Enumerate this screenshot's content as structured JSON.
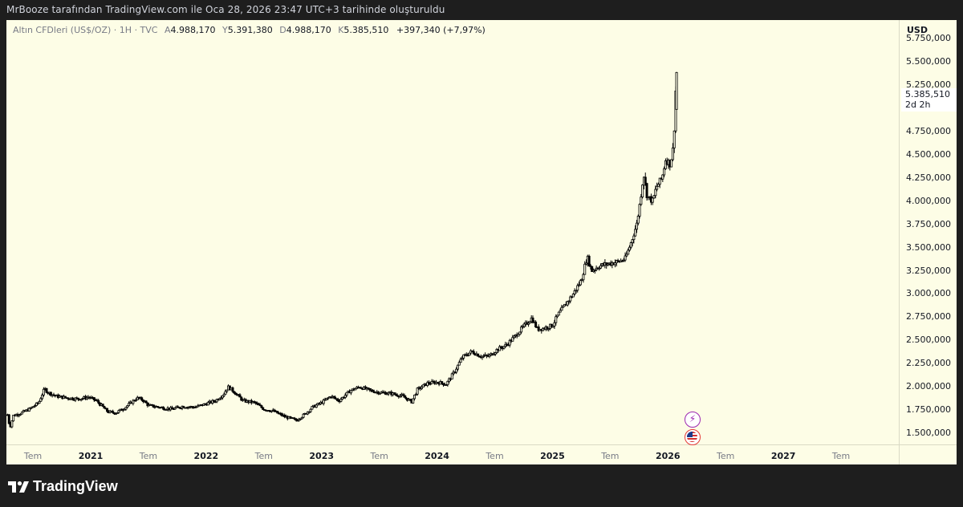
{
  "header": {
    "text": "MrBooze tarafından TradingView.com ile Oca 28, 2026 23:47 UTC+3 tarihinde oluşturuldu"
  },
  "legend": {
    "symbol": "Altın CFDleri (US$/OZ) · 1H · TVC",
    "open_key": "A",
    "open": "4.988,170",
    "high_key": "Y",
    "high": "5.391,380",
    "low_key": "D",
    "low": "4.988,170",
    "close_key": "K",
    "close": "5.385,510",
    "change": "+397,340 (+7,97%)"
  },
  "price_axis": {
    "currency": "USD",
    "last_price": "5.385,510",
    "countdown": "2d 2h"
  },
  "brand": {
    "name": "TradingView"
  },
  "icons": {
    "event_1": "lightning-icon",
    "event_2": "us-flag-icon"
  },
  "chart_data": {
    "type": "candlestick",
    "title": "",
    "ylabel": "USD",
    "ylim": [
      1380,
      5950
    ],
    "y_ticks": [
      {
        "value": 1500,
        "label": "1.500,000"
      },
      {
        "value": 1750,
        "label": "1.750,000"
      },
      {
        "value": 2000,
        "label": "2.000,000"
      },
      {
        "value": 2250,
        "label": "2.250,000"
      },
      {
        "value": 2500,
        "label": "2.500,000"
      },
      {
        "value": 2750,
        "label": "2.750,000"
      },
      {
        "value": 3000,
        "label": "3.000,000"
      },
      {
        "value": 3250,
        "label": "3.250,000"
      },
      {
        "value": 3500,
        "label": "3.500,000"
      },
      {
        "value": 3750,
        "label": "3.750,000"
      },
      {
        "value": 4000,
        "label": "4.000,000"
      },
      {
        "value": 4250,
        "label": "4.250,000"
      },
      {
        "value": 4500,
        "label": "4.500,000"
      },
      {
        "value": 4750,
        "label": "4.750,000"
      },
      {
        "value": 5000,
        "label": "5.000,000"
      },
      {
        "value": 5250,
        "label": "5.250,000"
      },
      {
        "value": 5500,
        "label": "5.500,000"
      },
      {
        "value": 5750,
        "label": "5.750,000"
      }
    ],
    "x_ticks": [
      {
        "value": 2020.5,
        "label": "Tem",
        "year": false
      },
      {
        "value": 2021.0,
        "label": "2021",
        "year": true
      },
      {
        "value": 2021.5,
        "label": "Tem",
        "year": false
      },
      {
        "value": 2022.0,
        "label": "2022",
        "year": true
      },
      {
        "value": 2022.5,
        "label": "Tem",
        "year": false
      },
      {
        "value": 2023.0,
        "label": "2023",
        "year": true
      },
      {
        "value": 2023.5,
        "label": "Tem",
        "year": false
      },
      {
        "value": 2024.0,
        "label": "2024",
        "year": true
      },
      {
        "value": 2024.5,
        "label": "Tem",
        "year": false
      },
      {
        "value": 2025.0,
        "label": "2025",
        "year": true
      },
      {
        "value": 2025.5,
        "label": "Tem",
        "year": false
      },
      {
        "value": 2026.0,
        "label": "2026",
        "year": true
      },
      {
        "value": 2026.5,
        "label": "Tem",
        "year": false
      },
      {
        "value": 2027.0,
        "label": "2027",
        "year": true
      },
      {
        "value": 2027.5,
        "label": "Tem",
        "year": false
      }
    ],
    "xlim": [
      2020.27,
      2028.0
    ],
    "grid": false,
    "close_path": [
      {
        "t": 2020.28,
        "v": 1700
      },
      {
        "t": 2020.3,
        "v": 1560
      },
      {
        "t": 2020.33,
        "v": 1690
      },
      {
        "t": 2020.4,
        "v": 1720
      },
      {
        "t": 2020.47,
        "v": 1760
      },
      {
        "t": 2020.55,
        "v": 1830
      },
      {
        "t": 2020.6,
        "v": 1980
      },
      {
        "t": 2020.63,
        "v": 1940
      },
      {
        "t": 2020.7,
        "v": 1900
      },
      {
        "t": 2020.8,
        "v": 1880
      },
      {
        "t": 2020.9,
        "v": 1870
      },
      {
        "t": 2020.98,
        "v": 1890
      },
      {
        "t": 2021.05,
        "v": 1850
      },
      {
        "t": 2021.15,
        "v": 1730
      },
      {
        "t": 2021.22,
        "v": 1720
      },
      {
        "t": 2021.3,
        "v": 1780
      },
      {
        "t": 2021.4,
        "v": 1880
      },
      {
        "t": 2021.45,
        "v": 1860
      },
      {
        "t": 2021.5,
        "v": 1800
      },
      {
        "t": 2021.6,
        "v": 1780
      },
      {
        "t": 2021.7,
        "v": 1760
      },
      {
        "t": 2021.8,
        "v": 1790
      },
      {
        "t": 2021.9,
        "v": 1780
      },
      {
        "t": 2021.98,
        "v": 1810
      },
      {
        "t": 2022.08,
        "v": 1850
      },
      {
        "t": 2022.15,
        "v": 1920
      },
      {
        "t": 2022.19,
        "v": 2000
      },
      {
        "t": 2022.24,
        "v": 1950
      },
      {
        "t": 2022.32,
        "v": 1850
      },
      {
        "t": 2022.42,
        "v": 1830
      },
      {
        "t": 2022.5,
        "v": 1760
      },
      {
        "t": 2022.58,
        "v": 1740
      },
      {
        "t": 2022.68,
        "v": 1680
      },
      {
        "t": 2022.78,
        "v": 1640
      },
      {
        "t": 2022.85,
        "v": 1700
      },
      {
        "t": 2022.92,
        "v": 1780
      },
      {
        "t": 2023.0,
        "v": 1830
      },
      {
        "t": 2023.08,
        "v": 1900
      },
      {
        "t": 2023.15,
        "v": 1850
      },
      {
        "t": 2023.25,
        "v": 1960
      },
      {
        "t": 2023.33,
        "v": 2000
      },
      {
        "t": 2023.42,
        "v": 1960
      },
      {
        "t": 2023.5,
        "v": 1940
      },
      {
        "t": 2023.6,
        "v": 1930
      },
      {
        "t": 2023.7,
        "v": 1900
      },
      {
        "t": 2023.78,
        "v": 1840
      },
      {
        "t": 2023.83,
        "v": 1970
      },
      {
        "t": 2023.92,
        "v": 2040
      },
      {
        "t": 2024.0,
        "v": 2050
      },
      {
        "t": 2024.08,
        "v": 2030
      },
      {
        "t": 2024.15,
        "v": 2160
      },
      {
        "t": 2024.22,
        "v": 2320
      },
      {
        "t": 2024.3,
        "v": 2380
      },
      {
        "t": 2024.38,
        "v": 2330
      },
      {
        "t": 2024.45,
        "v": 2330
      },
      {
        "t": 2024.52,
        "v": 2400
      },
      {
        "t": 2024.6,
        "v": 2450
      },
      {
        "t": 2024.68,
        "v": 2550
      },
      {
        "t": 2024.75,
        "v": 2650
      },
      {
        "t": 2024.82,
        "v": 2740
      },
      {
        "t": 2024.87,
        "v": 2620
      },
      {
        "t": 2024.92,
        "v": 2630
      },
      {
        "t": 2025.0,
        "v": 2660
      },
      {
        "t": 2025.05,
        "v": 2780
      },
      {
        "t": 2025.12,
        "v": 2900
      },
      {
        "t": 2025.18,
        "v": 3000
      },
      {
        "t": 2025.25,
        "v": 3150
      },
      {
        "t": 2025.3,
        "v": 3400
      },
      {
        "t": 2025.34,
        "v": 3250
      },
      {
        "t": 2025.4,
        "v": 3300
      },
      {
        "t": 2025.5,
        "v": 3330
      },
      {
        "t": 2025.58,
        "v": 3350
      },
      {
        "t": 2025.63,
        "v": 3380
      },
      {
        "t": 2025.68,
        "v": 3550
      },
      {
        "t": 2025.73,
        "v": 3750
      },
      {
        "t": 2025.76,
        "v": 4000
      },
      {
        "t": 2025.79,
        "v": 4300
      },
      {
        "t": 2025.82,
        "v": 4050
      },
      {
        "t": 2025.87,
        "v": 4000
      },
      {
        "t": 2025.9,
        "v": 4150
      },
      {
        "t": 2025.95,
        "v": 4250
      },
      {
        "t": 2025.98,
        "v": 4450
      },
      {
        "t": 2026.02,
        "v": 4400
      },
      {
        "t": 2026.05,
        "v": 4600
      },
      {
        "t": 2026.06,
        "v": 4990
      },
      {
        "t": 2026.075,
        "v": 5385.51
      }
    ],
    "last_candle": {
      "t": 2026.075,
      "open": 4988.17,
      "high": 5391.38,
      "low": 4988.17,
      "close": 5385.51
    }
  }
}
